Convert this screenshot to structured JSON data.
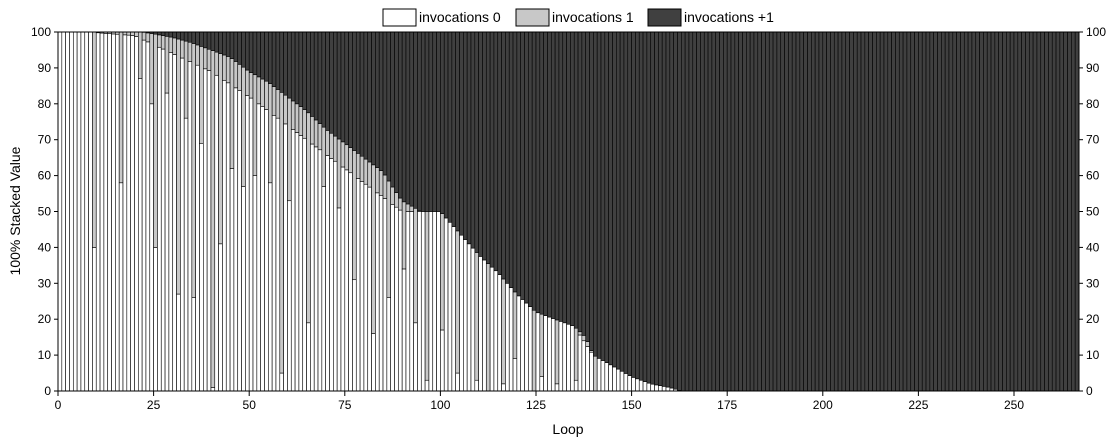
{
  "chart_data": {
    "type": "bar",
    "stacked_percent": true,
    "xlabel": "Loop",
    "ylabel": "100% Stacked Value",
    "x_range": [
      0,
      267
    ],
    "ylim": [
      0,
      100
    ],
    "x_ticks": [
      0,
      25,
      50,
      75,
      100,
      125,
      150,
      175,
      200,
      225,
      250
    ],
    "y_ticks": [
      0,
      10,
      20,
      30,
      40,
      50,
      60,
      70,
      80,
      90,
      100
    ],
    "grid": false,
    "legend_position": "top",
    "colors": {
      "invocations 0": "#ffffff",
      "invocations 1": "#c8c8c8",
      "invocations +1": "#404040",
      "stroke": "#000000"
    },
    "series": [
      {
        "name": "invocations 0",
        "values_note_computed": true
      },
      {
        "name": "invocations 1",
        "values_note_computed": true
      },
      {
        "name": "invocations +1",
        "values_note_computed": true
      }
    ],
    "boundary_top_series": {
      "description_points_loop": [
        0,
        7,
        22,
        25,
        30,
        35,
        45,
        50,
        55,
        60,
        65,
        70,
        75,
        80,
        85,
        88,
        90,
        95,
        100,
        105,
        110,
        115,
        120,
        125,
        130,
        135,
        138,
        140,
        145,
        150,
        155,
        160,
        163,
        267
      ],
      "description_points_value": [
        100,
        100,
        100,
        99.5,
        98.5,
        97,
        93,
        89,
        86,
        82,
        78,
        73,
        69,
        65,
        61,
        56,
        53,
        50,
        50,
        44,
        38,
        33,
        27,
        22,
        20,
        18,
        15,
        10,
        7,
        4,
        2,
        1,
        0,
        0
      ]
    },
    "boundary_white_series": {
      "description_points_loop": [
        0,
        7,
        8,
        20,
        30,
        40,
        50,
        60,
        70,
        80,
        90,
        100,
        110,
        120,
        125,
        130,
        135,
        140,
        145,
        150,
        155,
        160,
        163,
        267
      ],
      "description_points_value": [
        100,
        100,
        100,
        99,
        94,
        89,
        82,
        74,
        66,
        58,
        50,
        50,
        40,
        30,
        22,
        20,
        18,
        10,
        7,
        4,
        2,
        1,
        0,
        0
      ]
    }
  }
}
